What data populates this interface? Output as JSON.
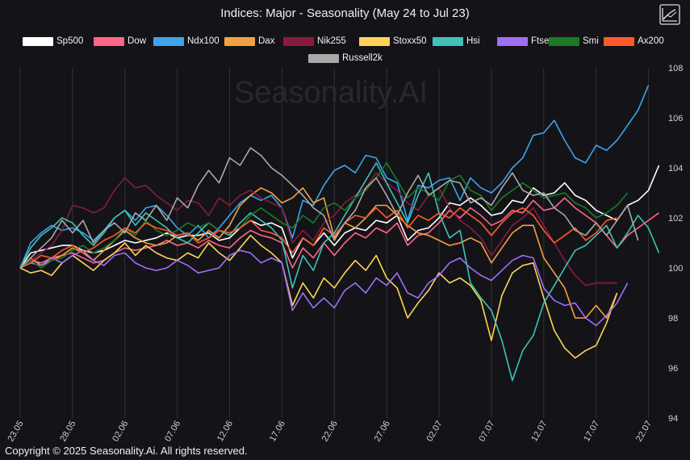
{
  "title": "Indices: Major - Seasonality (May 24 to Jul 23)",
  "watermark": "Seasonality.AI",
  "copyright": "Copyright © 2025 Seasonality.Ai. All rights reserved.",
  "chart_data": {
    "type": "line",
    "xlabels": [
      "23.05",
      "28.05",
      "02.06",
      "07.06",
      "12.06",
      "17.06",
      "22.06",
      "27.06",
      "02.07",
      "07.07",
      "12.07",
      "17.07",
      "22.07"
    ],
    "xlabel_steps": [
      0,
      5,
      10,
      15,
      20,
      25,
      30,
      35,
      40,
      45,
      50,
      55,
      60
    ],
    "y_ticks": [
      94,
      96,
      98,
      100,
      102,
      104,
      106,
      108
    ],
    "ylim": [
      94,
      108
    ],
    "grid": "vertical",
    "legend": "top",
    "series": [
      {
        "name": "Sp500",
        "color": "#ffffff",
        "values": [
          100,
          100.6,
          100.7,
          100.8,
          100.9,
          100.9,
          100.7,
          100.6,
          100.7,
          100.9,
          101.1,
          101.0,
          101.1,
          101.2,
          101.4,
          101.2,
          101.3,
          101.3,
          101.4,
          101.1,
          101.2,
          101.6,
          101.9,
          101.7,
          101.8,
          101.6,
          100.4,
          101.2,
          100.9,
          101.4,
          100.9,
          101.4,
          101.6,
          101.5,
          101.9,
          101.8,
          102.1,
          101.1,
          101.5,
          101.6,
          102.0,
          102.6,
          102.5,
          102.8,
          102.5,
          102.1,
          102.2,
          102.7,
          102.6,
          103.2,
          102.9,
          103.0,
          103.4,
          102.9,
          102.7,
          102.3,
          102.1,
          101.9,
          102.5,
          102.7,
          103.1,
          104.1
        ]
      },
      {
        "name": "Dow",
        "color": "#ff6688",
        "values": [
          100,
          100.3,
          100.2,
          100.4,
          100.5,
          100.6,
          100.4,
          100.2,
          100.3,
          100.6,
          100.8,
          100.7,
          100.8,
          100.9,
          101.1,
          100.9,
          101.0,
          100.8,
          101.1,
          100.9,
          100.8,
          101.2,
          101.5,
          101.3,
          101.2,
          101.0,
          100.0,
          100.8,
          100.4,
          101.0,
          100.5,
          101.0,
          101.4,
          101.2,
          101.6,
          101.4,
          101.8,
          100.9,
          101.3,
          101.4,
          101.8,
          102.3,
          102.0,
          102.4,
          102.1,
          101.7,
          101.9,
          102.3,
          102.2,
          102.7,
          102.3,
          102.4,
          102.8,
          102.4,
          102.1,
          101.8,
          101.3,
          100.8,
          101.3,
          101.6,
          101.9,
          102.2
        ]
      },
      {
        "name": "Ndx100",
        "color": "#3ea4ea",
        "values": [
          100,
          101.0,
          101.4,
          101.7,
          101.5,
          101.6,
          101.4,
          101.1,
          101.5,
          102.0,
          102.3,
          101.9,
          102.4,
          102.5,
          102.1,
          101.6,
          101.3,
          101.7,
          101.2,
          101.6,
          102.1,
          102.6,
          102.9,
          102.7,
          102.9,
          102.4,
          101.2,
          102.7,
          102.5,
          103.3,
          103.9,
          104.1,
          103.8,
          104.5,
          104.4,
          103.6,
          103.4,
          101.9,
          103.3,
          103.2,
          103.5,
          103.6,
          102.7,
          103.6,
          103.2,
          103.0,
          103.4,
          104.0,
          104.4,
          105.3,
          105.4,
          105.9,
          105.1,
          104.4,
          104.2,
          104.9,
          104.7,
          105.1,
          105.7,
          106.3,
          107.3
        ]
      },
      {
        "name": "Dax",
        "color": "#f5a142",
        "values": [
          100,
          100.4,
          100.1,
          100.3,
          100.5,
          100.8,
          100.6,
          100.3,
          100.7,
          101.1,
          101.5,
          101.2,
          101.0,
          100.9,
          101.0,
          101.3,
          101.4,
          101.1,
          101.5,
          101.2,
          101.7,
          102.5,
          102.9,
          103.2,
          103.0,
          102.6,
          102.8,
          103.2,
          102.6,
          102.8,
          101.2,
          101.8,
          101.6,
          102.0,
          102.5,
          102.5,
          102.1,
          101.7,
          101.4,
          101.3,
          101.1,
          100.9,
          101.0,
          101.2,
          101.0,
          100.2,
          100.8,
          101.4,
          101.7,
          101.7,
          100.4,
          99.8,
          99.2,
          98.0,
          98.0,
          98.5,
          98.0,
          99.0
        ]
      },
      {
        "name": "Nik255",
        "color": "#8a1a3e",
        "values": [
          100,
          100.3,
          100.6,
          100.9,
          101.5,
          102.5,
          102.4,
          102.2,
          102.4,
          103.1,
          103.6,
          103.2,
          103.3,
          102.9,
          102.6,
          102.3,
          102.7,
          102.6,
          102.1,
          102.8,
          102.5,
          102.9,
          103.1,
          102.8,
          102.6,
          102.4,
          101.0,
          101.5,
          101.1,
          101.8,
          102.1,
          102.6,
          102.9,
          103.2,
          103.8,
          103.4,
          103.1,
          102.6,
          102.3,
          102.9,
          103.2,
          102.4,
          101.9,
          101.6,
          101.2,
          100.5,
          101.1,
          101.7,
          102.0,
          102.4,
          101.7,
          101.0,
          100.3,
          99.7,
          99.3,
          99.4,
          99.4,
          99.4
        ]
      },
      {
        "name": "Stoxx50",
        "color": "#ffd35a",
        "values": [
          100,
          99.8,
          99.9,
          99.7,
          100.2,
          100.5,
          100.2,
          99.9,
          100.3,
          100.6,
          101.0,
          100.5,
          100.9,
          100.6,
          100.4,
          100.3,
          100.6,
          100.4,
          101.0,
          100.6,
          100.3,
          100.8,
          101.3,
          100.9,
          100.6,
          100.2,
          98.5,
          99.4,
          98.8,
          99.6,
          99.2,
          99.8,
          100.3,
          99.9,
          100.5,
          99.6,
          99.2,
          98.0,
          98.6,
          99.1,
          99.8,
          99.4,
          99.6,
          99.3,
          98.7,
          97.1,
          98.9,
          99.8,
          100.1,
          100.2,
          98.8,
          97.5,
          96.8,
          96.4,
          96.7,
          96.9,
          97.8,
          99.0
        ]
      },
      {
        "name": "Hsi",
        "color": "#3fc2b8",
        "values": [
          100,
          100.8,
          101.3,
          101.6,
          102.0,
          101.8,
          101.3,
          100.9,
          101.4,
          102.0,
          102.3,
          101.7,
          102.2,
          101.9,
          101.6,
          101.2,
          101.0,
          101.4,
          101.8,
          101.5,
          101.3,
          101.8,
          102.2,
          101.9,
          101.6,
          101.1,
          99.2,
          100.5,
          99.9,
          101.0,
          101.4,
          102.1,
          102.8,
          103.5,
          104.2,
          103.4,
          102.6,
          101.8,
          102.9,
          103.8,
          102.2,
          101.2,
          101.5,
          99.4,
          98.8,
          98.3,
          97.1,
          95.5,
          96.7,
          97.3,
          98.6,
          99.3,
          100.0,
          100.7,
          100.9,
          101.3,
          101.7,
          100.8,
          101.4,
          102.1,
          101.6,
          100.6
        ]
      },
      {
        "name": "Ftse",
        "color": "#a06ef7",
        "values": [
          100,
          100.2,
          100.1,
          100.4,
          100.2,
          100.5,
          100.7,
          100.3,
          100.1,
          100.5,
          100.6,
          100.2,
          100.0,
          99.9,
          100.0,
          100.3,
          100.1,
          99.8,
          99.9,
          100.0,
          100.5,
          100.7,
          100.6,
          100.2,
          100.4,
          100.2,
          98.3,
          99.0,
          98.4,
          98.8,
          98.4,
          99.1,
          99.4,
          99.0,
          99.6,
          99.3,
          99.8,
          99.0,
          98.8,
          99.4,
          99.7,
          100.2,
          100.4,
          100.0,
          99.7,
          99.5,
          99.9,
          100.3,
          100.5,
          100.4,
          99.2,
          98.7,
          98.5,
          98.6,
          98.0,
          97.7,
          98.1,
          98.6,
          99.4
        ]
      },
      {
        "name": "Smi",
        "color": "#1a7a28",
        "values": [
          100,
          100.3,
          100.0,
          100.3,
          100.4,
          100.7,
          100.9,
          100.6,
          100.8,
          101.1,
          101.6,
          101.3,
          101.9,
          101.5,
          101.3,
          101.5,
          101.8,
          101.6,
          101.8,
          101.5,
          101.4,
          101.6,
          102.1,
          102.4,
          102.1,
          101.8,
          101.6,
          102.1,
          101.8,
          102.4,
          102.6,
          102.3,
          102.8,
          103.1,
          103.6,
          104.2,
          103.5,
          102.8,
          103.2,
          103.0,
          102.7,
          103.5,
          103.7,
          103.1,
          102.9,
          102.3,
          102.8,
          103.1,
          103.4,
          103.1,
          102.8,
          102.9,
          103.0,
          102.6,
          102.4,
          102.0,
          102.2,
          102.5,
          103.0
        ]
      },
      {
        "name": "Ax200",
        "color": "#ff5a2a",
        "values": [
          100,
          100.2,
          100.5,
          100.4,
          100.7,
          100.9,
          100.6,
          100.8,
          101.1,
          101.3,
          101.6,
          101.4,
          101.8,
          101.6,
          101.5,
          101.3,
          101.4,
          101.0,
          101.2,
          101.5,
          101.4,
          101.6,
          101.9,
          101.5,
          101.4,
          101.2,
          100.6,
          101.2,
          100.9,
          101.6,
          101.3,
          101.8,
          102.1,
          102.0,
          102.4,
          102.0,
          102.3,
          101.6,
          102.1,
          101.9,
          102.2,
          102.0,
          102.4,
          102.1,
          101.8,
          101.3,
          101.8,
          102.2,
          102.4,
          102.1,
          101.5,
          101.0,
          101.3,
          101.6,
          101.1,
          101.4,
          101.9,
          102.0
        ]
      },
      {
        "name": "Russell2k",
        "color": "#a9a9a9",
        "values": [
          100,
          100.4,
          100.8,
          101.2,
          101.9,
          101.4,
          101.9,
          101.0,
          101.5,
          101.8,
          101.4,
          102.2,
          101.9,
          102.5,
          101.9,
          102.8,
          102.4,
          103.3,
          103.9,
          103.4,
          104.4,
          104.1,
          104.8,
          104.5,
          104.0,
          103.7,
          103.3,
          102.9,
          102.4,
          102.1,
          101.1,
          101.8,
          102.3,
          103.2,
          103.6,
          102.9,
          102.1,
          103.0,
          103.7,
          102.9,
          103.2,
          103.5,
          103.4,
          102.6,
          102.8,
          102.5,
          103.2,
          103.8,
          103.1,
          102.9,
          103.0,
          102.4,
          102.1,
          101.5,
          101.3,
          101.8,
          101.3,
          101.9,
          102.5,
          101.1
        ]
      }
    ]
  }
}
